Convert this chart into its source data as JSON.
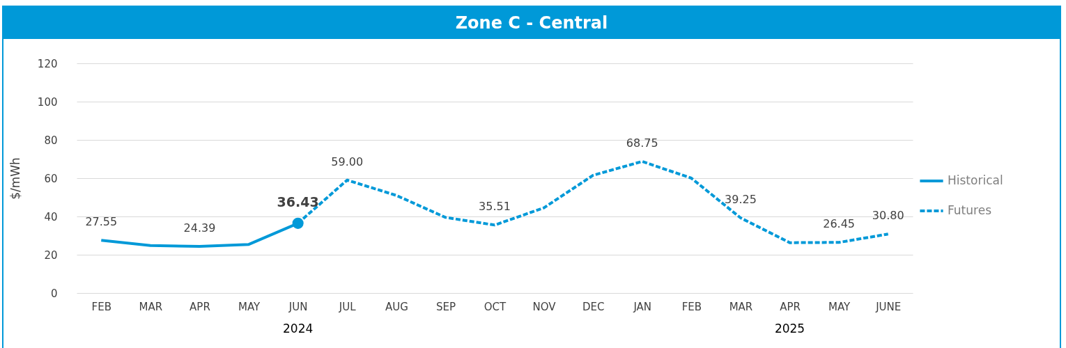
{
  "chart_data": {
    "type": "line",
    "title": "Zone C - Central",
    "ylabel": "$/mWh",
    "categories": [
      "FEB",
      "MAR",
      "APR",
      "MAY",
      "JUN",
      "JUL",
      "AUG",
      "SEP",
      "OCT",
      "NOV",
      "DEC",
      "JAN",
      "FEB",
      "MAR",
      "APR",
      "MAY",
      "JUNE"
    ],
    "series": [
      {
        "name": "Historical",
        "color": "#0099d8",
        "line_style": "solid",
        "values": [
          27.55,
          24.8,
          24.39,
          25.4,
          36.43,
          null,
          null,
          null,
          null,
          null,
          null,
          null,
          null,
          null,
          null,
          null,
          null
        ],
        "value_labels": [
          "27.55",
          null,
          "24.39",
          null,
          null,
          null,
          null,
          null,
          null,
          null,
          null,
          null,
          null,
          null,
          null,
          null,
          null
        ]
      },
      {
        "name": "Futures",
        "color": "#0099d8",
        "line_style": "dashed",
        "values": [
          null,
          null,
          null,
          null,
          36.43,
          59.0,
          51,
          39.5,
          35.51,
          44.5,
          61.5,
          68.75,
          60,
          39.25,
          26.3,
          26.45,
          30.8
        ],
        "value_labels": [
          null,
          null,
          null,
          null,
          null,
          "59.00",
          null,
          null,
          "35.51",
          null,
          null,
          "68.75",
          null,
          "39.25",
          null,
          "26.45",
          "30.80"
        ]
      },
      {
        "type": "scatter",
        "color": "#0099d8",
        "marker": "circle",
        "values": [
          null,
          null,
          null,
          null,
          36.43,
          null,
          null,
          null,
          null,
          null,
          null,
          null,
          null,
          null,
          null,
          null,
          null
        ],
        "value_labels": [
          null,
          null,
          null,
          null,
          "36.43",
          null,
          null,
          null,
          null,
          null,
          null,
          null,
          null,
          null,
          null,
          null,
          null
        ]
      }
    ],
    "ylim": [
      0,
      120
    ],
    "yticks": [
      0,
      20,
      40,
      60,
      80,
      100,
      120
    ],
    "grid": "y",
    "legend": "right",
    "annotations": [
      "2024",
      "2025"
    ]
  }
}
